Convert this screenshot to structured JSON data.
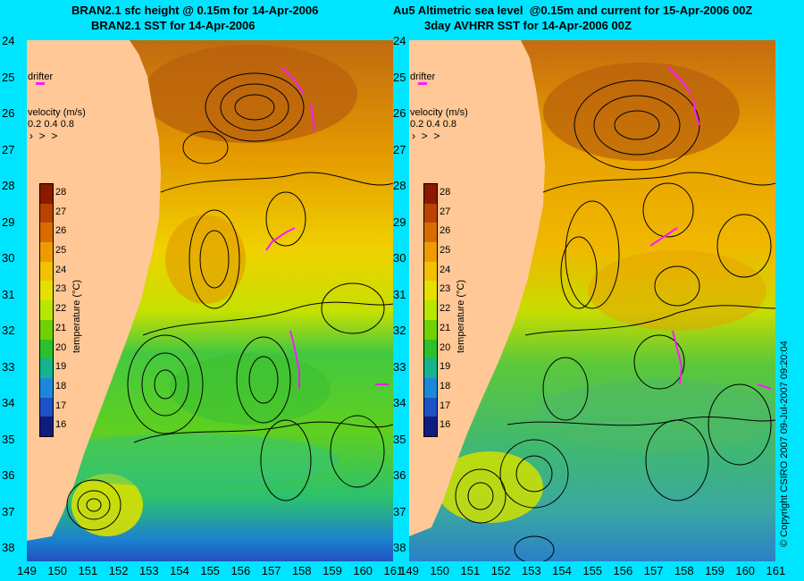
{
  "titles": {
    "left_line1": "BRAN2.1 sfc height @ 0.15m for 14-Apr-2006",
    "left_line2": "BRAN2.1 SST for 14-Apr-2006",
    "right_line1": "Au5 Altimetric sea level  @0.15m and current for 15-Apr-2006 00Z",
    "right_line2": "3day AVHRR SST for 14-Apr-2006 00Z"
  },
  "y_ticks": [
    "24",
    "25",
    "26",
    "27",
    "28",
    "29",
    "30",
    "31",
    "32",
    "33",
    "34",
    "35",
    "36",
    "37",
    "38"
  ],
  "x_ticks": [
    "149",
    "150",
    "151",
    "152",
    "153",
    "154",
    "155",
    "156",
    "157",
    "158",
    "159",
    "160",
    "161"
  ],
  "legend": {
    "drifter": "drifter",
    "velocity_title": "velocity (m/s)",
    "velocity_values": "0.2 0.4 0.8"
  },
  "colorbar": {
    "label": "temperature (°C)",
    "ticks": [
      "28",
      "27",
      "26",
      "25",
      "24",
      "23",
      "22",
      "21",
      "20",
      "19",
      "18",
      "17",
      "16"
    ],
    "colors": [
      "#8b1a00",
      "#b84400",
      "#d96c00",
      "#ef9a00",
      "#f2c200",
      "#e6e000",
      "#b8e600",
      "#6fd200",
      "#2cc12c",
      "#14b48c",
      "#1e88d8",
      "#1e50c8",
      "#101c80"
    ]
  },
  "copyright": "© Copyright CSIRO 2007   09-Jul-2007 09:20:04",
  "colors": {
    "background": "#00e5ff",
    "land": "#ffc896",
    "drifter": "#ff19ff"
  }
}
